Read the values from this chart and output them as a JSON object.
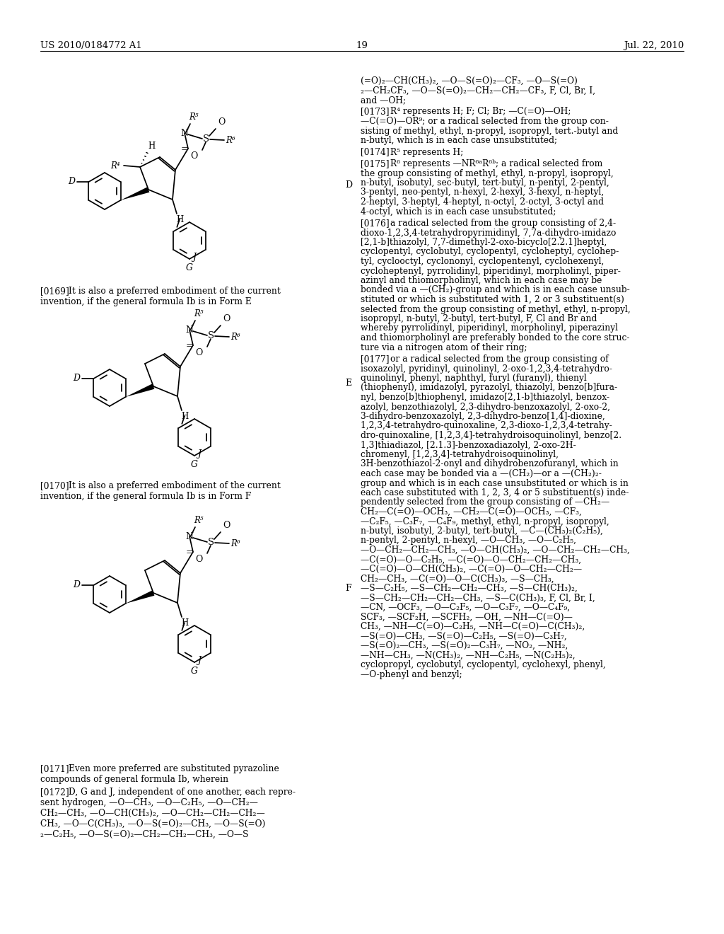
{
  "background": "#ffffff",
  "header_left": "US 2010/0184772 A1",
  "header_right": "Jul. 22, 2010",
  "page_num": "19"
}
